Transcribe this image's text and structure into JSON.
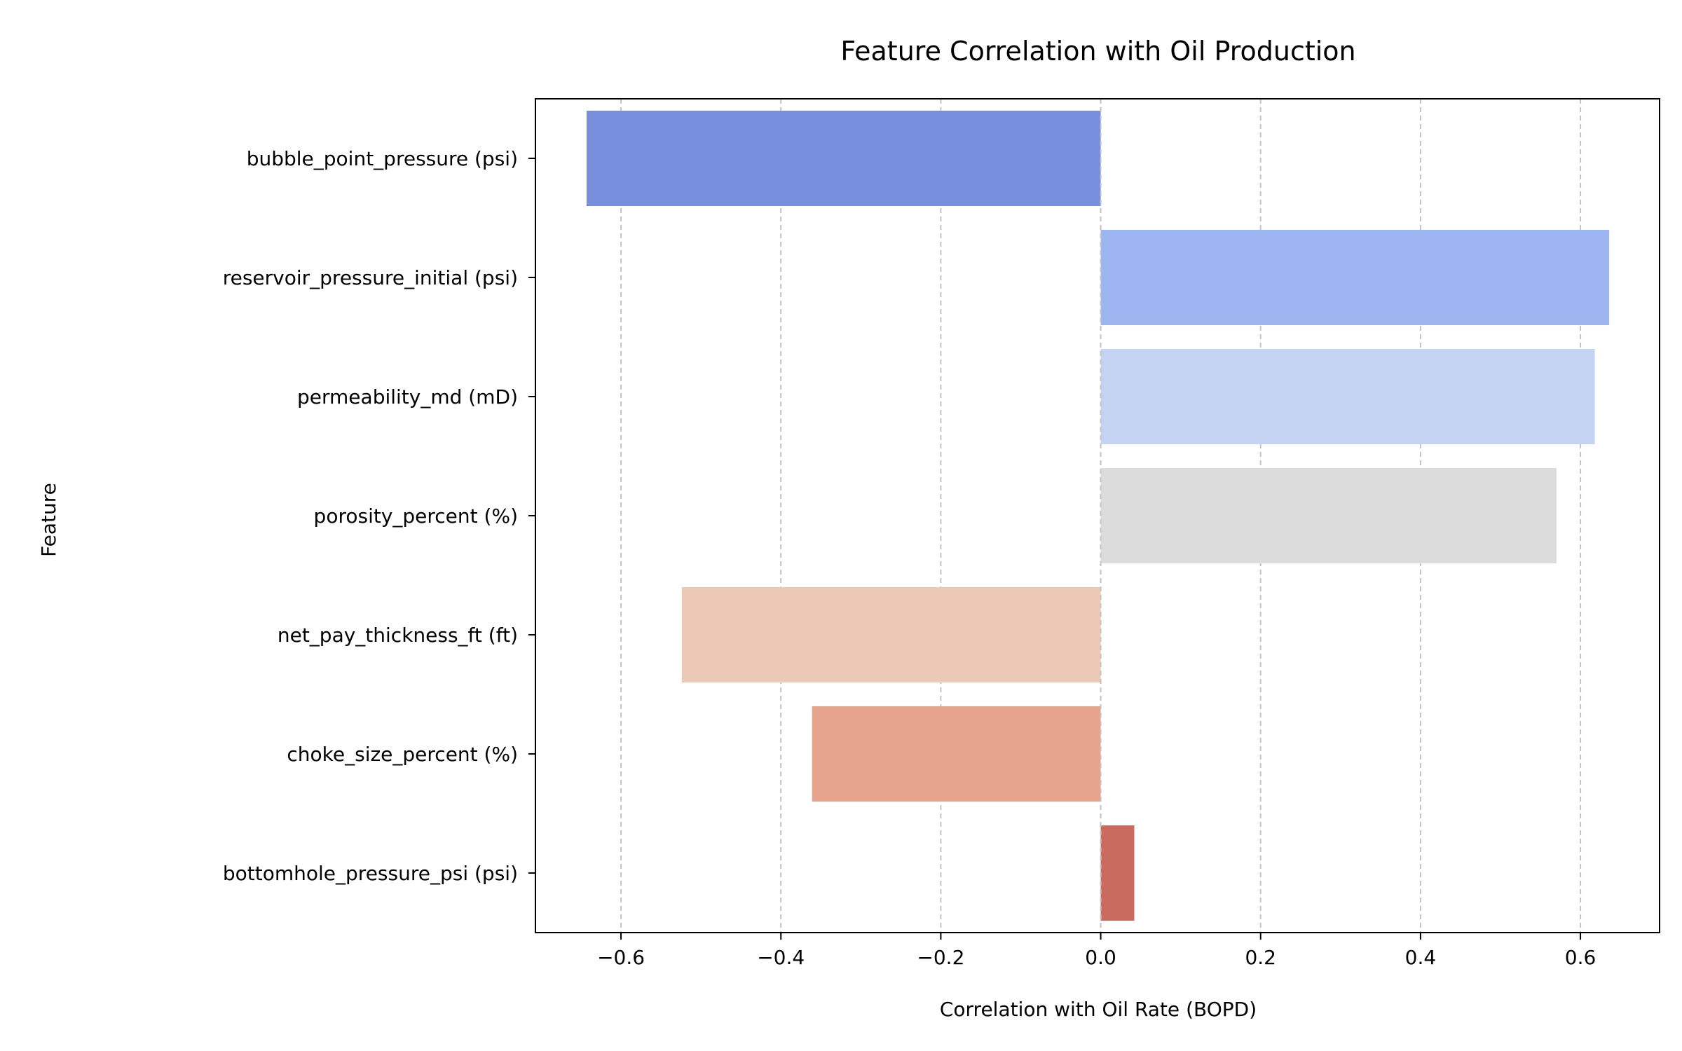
{
  "chart_data": {
    "type": "bar",
    "orientation": "horizontal",
    "title": "Feature Correlation with Oil Production",
    "xlabel": "Correlation with Oil Rate (BOPD)",
    "ylabel": "Feature",
    "xlim": [
      -0.707,
      0.699
    ],
    "xticks": [
      -0.6,
      -0.4,
      -0.2,
      0.0,
      0.2,
      0.4,
      0.6
    ],
    "xtick_labels": [
      "−0.6",
      "−0.4",
      "−0.2",
      "0.0",
      "0.2",
      "0.4",
      "0.6"
    ],
    "grid": {
      "x": true,
      "y": false,
      "style": "dashed"
    },
    "categories": [
      "bubble_point_pressure (psi)",
      "reservoir_pressure_initial (psi)",
      "permeability_md (mD)",
      "porosity_percent (%)",
      "net_pay_thickness_ft (ft)",
      "choke_size_percent (%)",
      "bottomhole_pressure_psi (psi)"
    ],
    "values": [
      -0.643,
      0.636,
      0.618,
      0.57,
      -0.524,
      -0.361,
      0.042
    ],
    "colors": [
      "#778edc",
      "#9db5f0",
      "#c3d3f1",
      "#dcdcdc",
      "#ecc8b6",
      "#e5a38b",
      "#ca6b5f"
    ],
    "palette": "coolwarm"
  }
}
